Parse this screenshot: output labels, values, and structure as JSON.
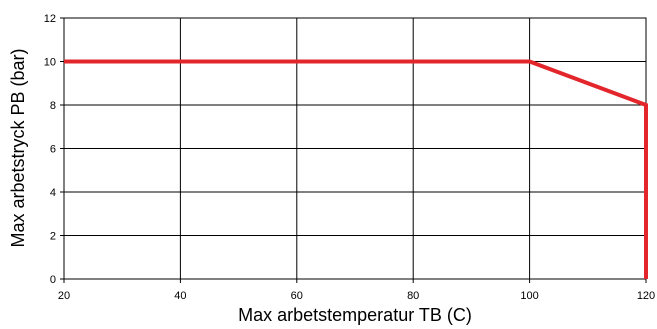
{
  "chart_data": {
    "type": "line",
    "title": "",
    "xlabel": "Max arbetstemperatur TB (C)",
    "ylabel": "Max arbetstryck PB (bar)",
    "xlim": [
      20,
      120
    ],
    "ylim": [
      0,
      12
    ],
    "x_ticks": [
      20,
      40,
      60,
      80,
      100,
      120
    ],
    "y_ticks": [
      0,
      2,
      4,
      6,
      8,
      10,
      12
    ],
    "grid": true,
    "legend": "none",
    "series": [
      {
        "color": "#e3262b",
        "points": [
          {
            "x": 20,
            "y": 10
          },
          {
            "x": 100,
            "y": 10
          },
          {
            "x": 120,
            "y": 8
          },
          {
            "x": 120,
            "y": 0
          }
        ]
      }
    ]
  }
}
